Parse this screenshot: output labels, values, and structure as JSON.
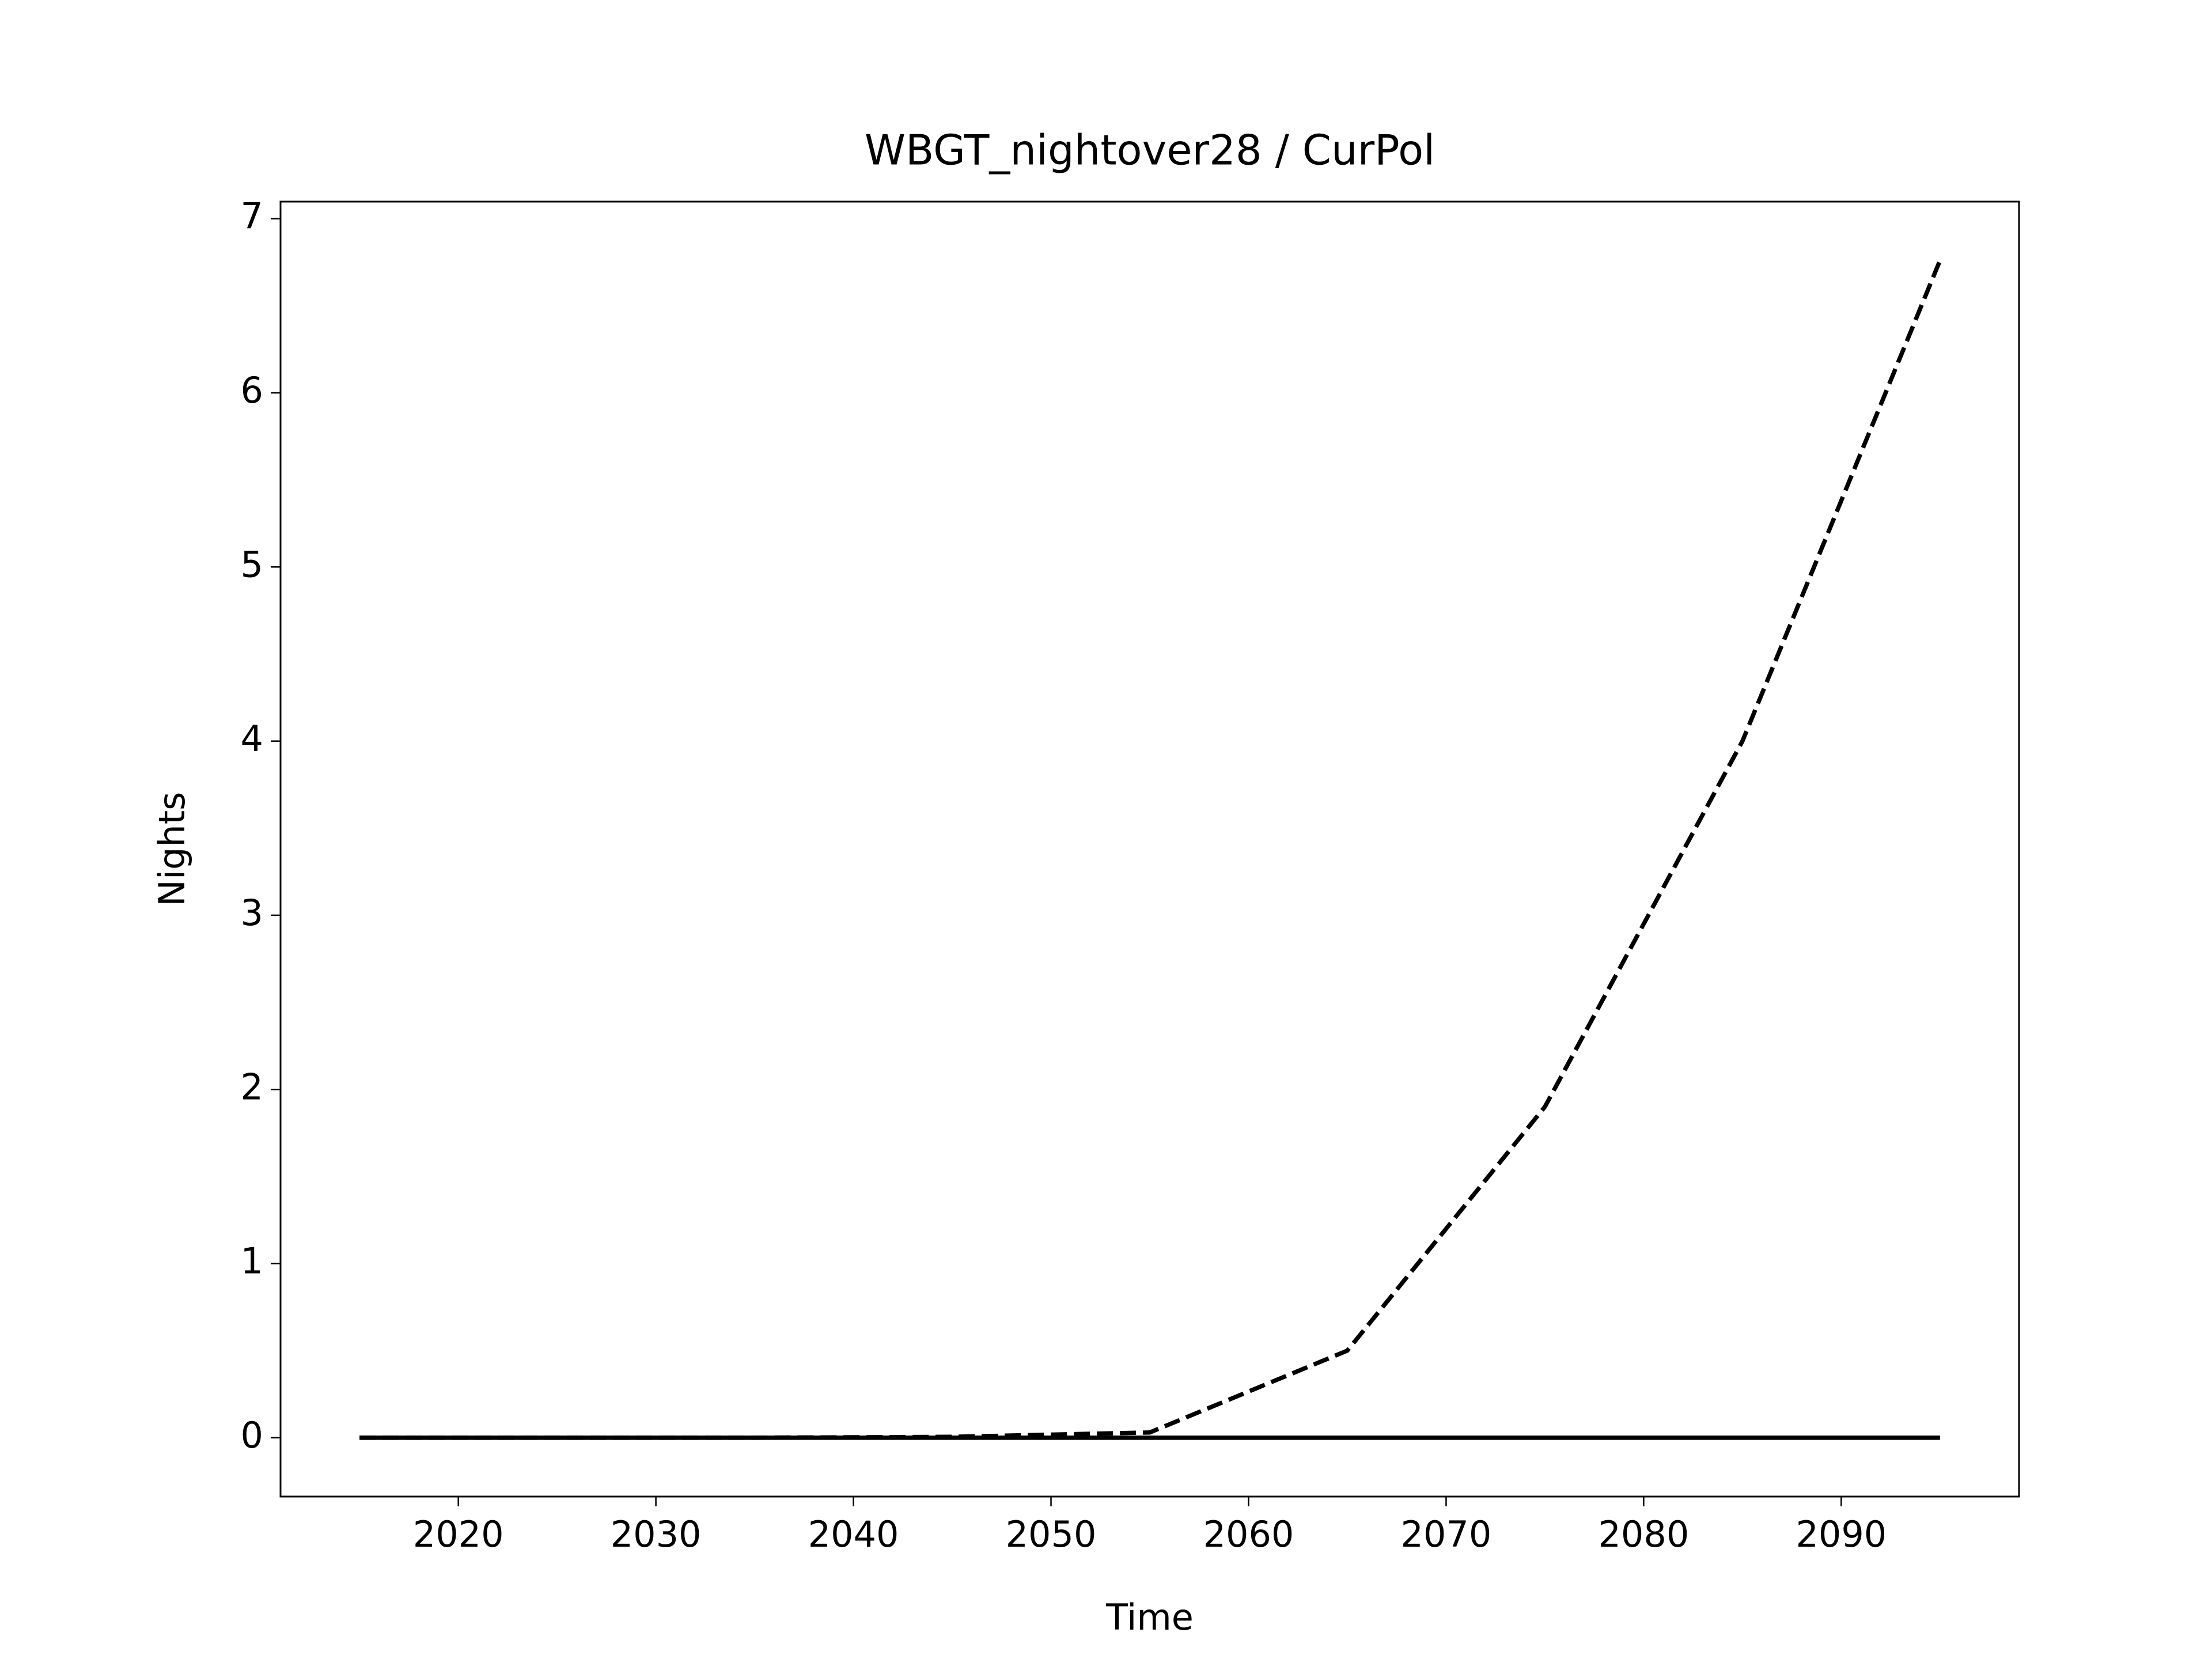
{
  "chart_data": {
    "type": "line",
    "title": "WBGT_nightover28 / CurPol",
    "x_label": "Time",
    "y_label": "Nights",
    "x": [
      2015,
      2025,
      2035,
      2045,
      2055,
      2065,
      2075,
      2085,
      2095
    ],
    "series": [
      {
        "color": "#000000",
        "linestyle": "dashed",
        "values": [
          0,
          0,
          0,
          0.005,
          0.03,
          0.5,
          1.9,
          4.0,
          6.76
        ]
      },
      {
        "color": "#000000",
        "linestyle": "solid",
        "values": [
          0,
          0,
          0,
          0,
          0,
          0,
          0,
          0,
          0
        ]
      }
    ],
    "xlim": [
      2011,
      2099
    ],
    "ylim": [
      -0.338,
      7.098
    ],
    "xticks": [
      2020,
      2030,
      2040,
      2050,
      2060,
      2070,
      2080,
      2090
    ],
    "yticks": [
      0,
      1,
      2,
      3,
      4,
      5,
      6,
      7
    ],
    "grid": false
  }
}
